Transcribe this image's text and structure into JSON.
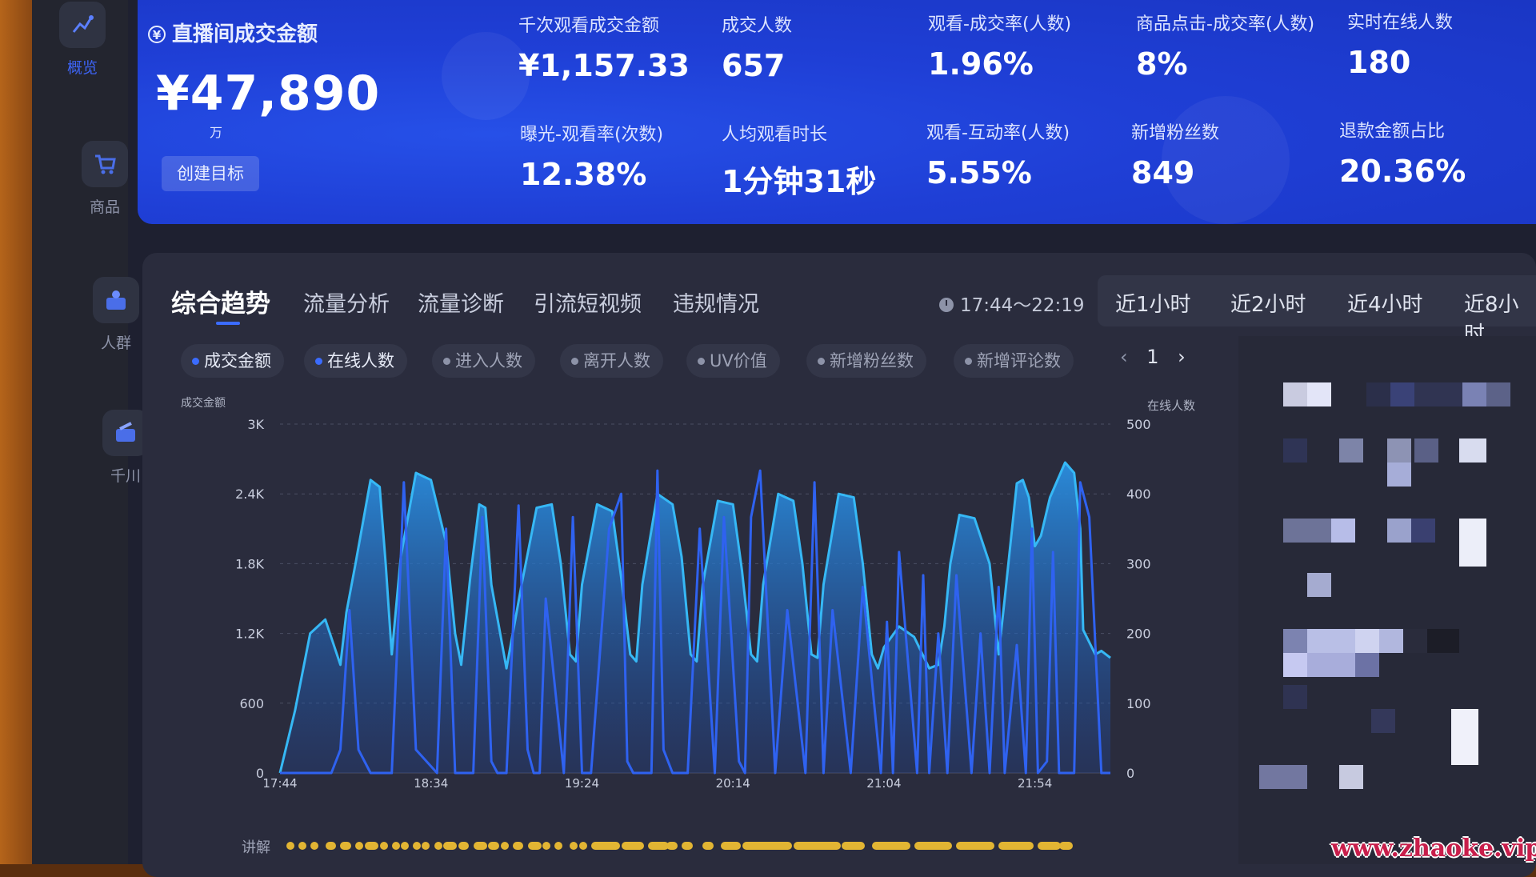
{
  "sidebar": {
    "items": [
      {
        "label": "概览",
        "icon": "dashboard-icon",
        "active": true
      },
      {
        "label": "商品",
        "icon": "cart-icon",
        "active": false
      },
      {
        "label": "人群",
        "icon": "audience-icon",
        "active": false
      },
      {
        "label": "千川",
        "icon": "qianchuan-icon",
        "active": false
      }
    ]
  },
  "stats": {
    "main": {
      "label": "直播间成交金额",
      "value": "¥47,890",
      "unit_mark": "万",
      "target_button": "创建目标"
    },
    "metrics": [
      {
        "label": "千次观看成交金额",
        "value": "¥1,157.33"
      },
      {
        "label": "成交人数",
        "value": "657"
      },
      {
        "label": "观看-成交率(人数)",
        "value": "1.96%"
      },
      {
        "label": "商品点击-成交率(人数)",
        "value": "8%"
      },
      {
        "label": "实时在线人数",
        "value": "180"
      },
      {
        "label": "曝光-观看率(次数)",
        "value": "12.38%"
      },
      {
        "label": "人均观看时长",
        "value": "1分钟31秒"
      },
      {
        "label": "观看-互动率(人数)",
        "value": "5.55%"
      },
      {
        "label": "新增粉丝数",
        "value": "849"
      },
      {
        "label": "退款金额占比",
        "value": "20.36%"
      }
    ]
  },
  "tabs": [
    "综合趋势",
    "流量分析",
    "流量诊断",
    "引流短视频",
    "违规情况"
  ],
  "active_tab": "综合趋势",
  "time_range": "17:44～22:19",
  "periods": [
    "近1小时",
    "近2小时",
    "近4小时",
    "近8小时"
  ],
  "metric_chips": [
    {
      "label": "成交金额",
      "selected": true
    },
    {
      "label": "在线人数",
      "selected": true
    },
    {
      "label": "进入人数",
      "selected": false
    },
    {
      "label": "离开人数",
      "selected": false
    },
    {
      "label": "UV价值",
      "selected": false
    },
    {
      "label": "新增粉丝数",
      "selected": false
    },
    {
      "label": "新增评论数",
      "selected": false
    }
  ],
  "pager": {
    "page": "1",
    "prev": "‹",
    "next": "›"
  },
  "narration_label": "讲解",
  "watermark": "www.zhaoke.vip",
  "colors": {
    "accent": "#3b6cff",
    "stats_bg": "#1f3fd6",
    "line_online": "#36b8f5",
    "line_sales": "#2f62f0",
    "narration": "#e2b533"
  },
  "chart_data": {
    "type": "area",
    "left_axis": {
      "label": "成交金额",
      "ticks": [
        "0",
        "600",
        "1.2K",
        "1.8K",
        "2.4K",
        "3K"
      ],
      "range": [
        0,
        3000
      ]
    },
    "right_axis": {
      "label": "在线人数",
      "ticks": [
        "0",
        "100",
        "200",
        "300",
        "400",
        "500"
      ],
      "range": [
        0,
        500
      ]
    },
    "x_ticks": [
      "17:44",
      "18:34",
      "19:24",
      "20:14",
      "21:04",
      "21:54"
    ],
    "x_range_minutes": [
      0,
      275
    ],
    "series": [
      {
        "name": "在线人数",
        "axis": "right",
        "x_minutes": [
          0,
          5,
          10,
          15,
          20,
          22,
          25,
          30,
          33,
          35,
          37,
          40,
          45,
          50,
          55,
          58,
          60,
          63,
          66,
          68,
          70,
          75,
          80,
          85,
          90,
          93,
          96,
          98,
          100,
          105,
          110,
          113,
          116,
          118,
          120,
          125,
          130,
          133,
          136,
          138,
          140,
          145,
          150,
          153,
          156,
          158,
          160,
          165,
          170,
          173,
          176,
          178,
          180,
          185,
          190,
          193,
          196,
          198,
          200,
          205,
          210,
          215,
          218,
          220,
          222,
          225,
          230,
          235,
          238,
          240,
          244,
          246,
          248,
          250,
          252,
          255,
          260,
          263,
          265,
          266,
          270,
          272,
          275
        ],
        "values": [
          0,
          90,
          200,
          220,
          155,
          230,
          300,
          420,
          410,
          300,
          170,
          310,
          430,
          420,
          330,
          200,
          155,
          280,
          385,
          380,
          270,
          150,
          270,
          380,
          385,
          300,
          170,
          160,
          270,
          385,
          375,
          280,
          170,
          160,
          270,
          400,
          385,
          310,
          170,
          160,
          270,
          390,
          385,
          290,
          170,
          160,
          270,
          400,
          390,
          300,
          170,
          165,
          270,
          400,
          395,
          300,
          170,
          150,
          180,
          210,
          195,
          150,
          155,
          210,
          300,
          370,
          365,
          300,
          170,
          250,
          415,
          420,
          395,
          325,
          340,
          395,
          445,
          430,
          350,
          205,
          170,
          175,
          165
        ]
      },
      {
        "name": "成交金额",
        "axis": "left",
        "x_minutes": [
          0,
          17,
          20,
          23,
          26,
          30,
          37,
          39,
          41,
          45,
          52,
          55,
          58,
          64,
          67,
          70,
          72,
          75,
          79,
          82,
          84,
          86,
          88,
          94,
          97,
          100,
          103,
          109,
          113,
          115,
          117,
          123,
          125,
          127,
          130,
          135,
          139,
          144,
          147,
          152,
          154,
          156,
          159,
          164,
          168,
          174,
          177,
          180,
          183,
          189,
          193,
          199,
          201,
          203,
          205,
          211,
          213,
          215,
          218,
          221,
          224,
          229,
          232,
          235,
          238,
          240,
          244,
          247,
          249,
          251,
          254,
          256,
          258,
          263,
          265,
          268,
          272,
          275
        ],
        "values": [
          0,
          0,
          200,
          1400,
          200,
          0,
          0,
          1200,
          2500,
          200,
          0,
          2100,
          0,
          0,
          2200,
          100,
          0,
          0,
          2300,
          200,
          0,
          0,
          1500,
          0,
          2200,
          0,
          0,
          2100,
          2400,
          100,
          0,
          0,
          2600,
          200,
          0,
          0,
          2100,
          0,
          2200,
          100,
          0,
          2200,
          2600,
          0,
          1400,
          0,
          2500,
          0,
          1400,
          0,
          1600,
          0,
          1300,
          0,
          1900,
          0,
          1700,
          0,
          1200,
          0,
          1700,
          0,
          1200,
          0,
          1600,
          0,
          1100,
          0,
          2100,
          0,
          100,
          1900,
          0,
          0,
          2500,
          2200,
          0,
          0
        ]
      }
    ],
    "narration_segments_minutes": [
      [
        2,
        2
      ],
      [
        6,
        6
      ],
      [
        10,
        10
      ],
      [
        15,
        16
      ],
      [
        20,
        21
      ],
      [
        25,
        25
      ],
      [
        28,
        30
      ],
      [
        33,
        33
      ],
      [
        37,
        37
      ],
      [
        40,
        40
      ],
      [
        44,
        44
      ],
      [
        47,
        47
      ],
      [
        51,
        51
      ],
      [
        54,
        56
      ],
      [
        59,
        60
      ],
      [
        64,
        66
      ],
      [
        69,
        70
      ],
      [
        73,
        73
      ],
      [
        77,
        78
      ],
      [
        82,
        84
      ],
      [
        87,
        87
      ],
      [
        91,
        91
      ],
      [
        96,
        96
      ],
      [
        99,
        99
      ],
      [
        103,
        110
      ],
      [
        113,
        118
      ],
      [
        122,
        126
      ],
      [
        128,
        129
      ],
      [
        133,
        134
      ],
      [
        140,
        141
      ],
      [
        146,
        150
      ],
      [
        153,
        167
      ],
      [
        170,
        183
      ],
      [
        186,
        191
      ],
      [
        196,
        206
      ],
      [
        210,
        220
      ],
      [
        224,
        234
      ],
      [
        238,
        247
      ],
      [
        251,
        256
      ],
      [
        258,
        260
      ]
    ]
  }
}
